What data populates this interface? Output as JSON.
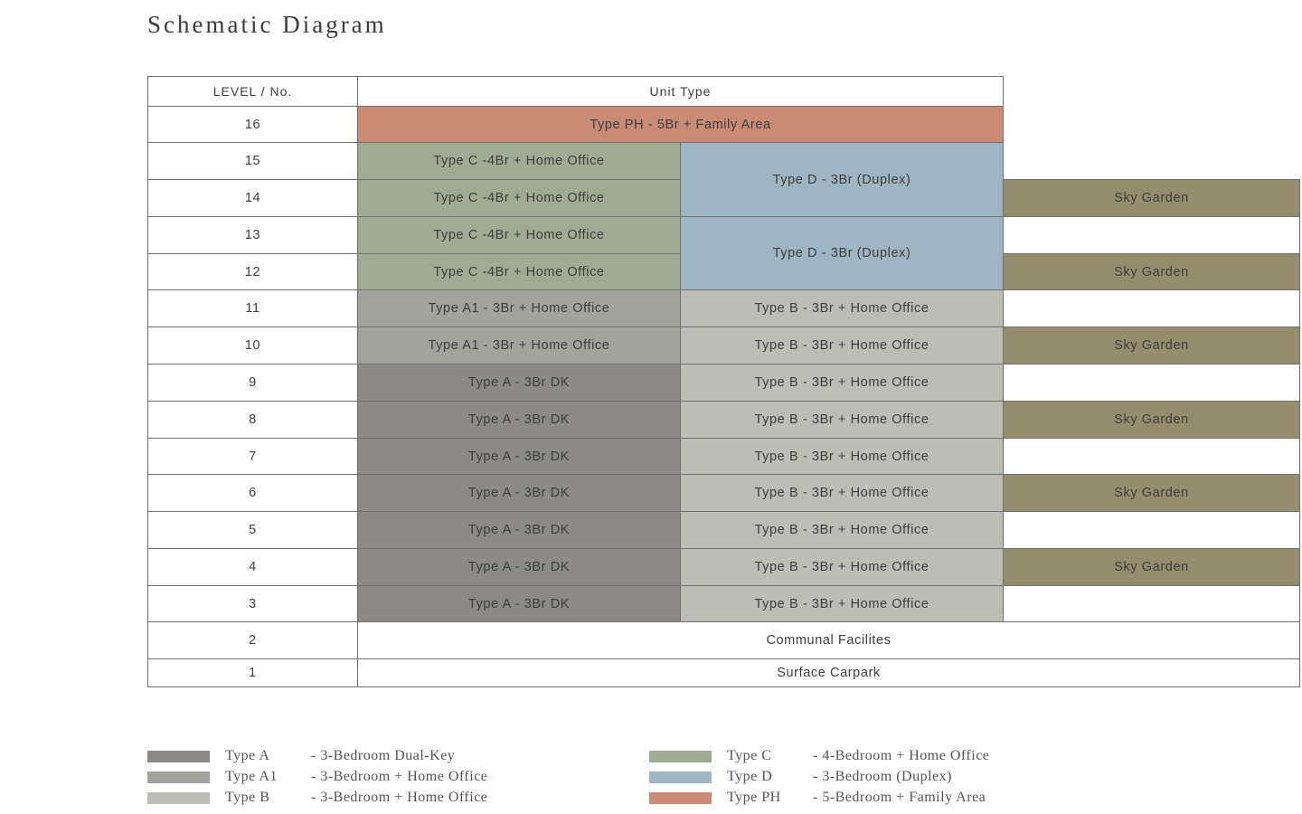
{
  "title": "Schematic Diagram",
  "header": {
    "level": "LEVEL / No.",
    "unit_type": "Unit Type"
  },
  "levels": [
    "16",
    "15",
    "14",
    "13",
    "12",
    "11",
    "10",
    "9",
    "8",
    "7",
    "6",
    "5",
    "4",
    "3",
    "2",
    "1"
  ],
  "units": {
    "ph": "Type PH - 5Br + Family Area",
    "c15": "Type C -4Br + Home Office",
    "c14": "Type C -4Br + Home Office",
    "c13": "Type C -4Br + Home Office",
    "c12": "Type C -4Br + Home Office",
    "d_upper": "Type D - 3Br (Duplex)",
    "d_lower": "Type D - 3Br (Duplex)",
    "a1_11": "Type A1 - 3Br + Home Office",
    "a1_10": "Type A1 - 3Br + Home Office",
    "a9": "Type A - 3Br DK",
    "a8": "Type A - 3Br DK",
    "a7": "Type A - 3Br DK",
    "a6": "Type A - 3Br DK",
    "a5": "Type A - 3Br DK",
    "a4": "Type A - 3Br DK",
    "a3": "Type A - 3Br DK",
    "b11": "Type B - 3Br + Home Office",
    "b10": "Type B - 3Br + Home Office",
    "b9": "Type B - 3Br + Home Office",
    "b8": "Type B - 3Br + Home Office",
    "b7": "Type B - 3Br + Home Office",
    "b6": "Type B - 3Br + Home Office",
    "b5": "Type B - 3Br + Home Office",
    "b4": "Type B - 3Br + Home Office",
    "b3": "Type B - 3Br + Home Office",
    "communal": "Communal Facilites",
    "carpark": "Surface Carpark"
  },
  "sky_garden": {
    "l14": "Sky Garden",
    "l12": "Sky Garden",
    "l10": "Sky Garden",
    "l8": "Sky Garden",
    "l6": "Sky Garden",
    "l4": "Sky Garden"
  },
  "legend": [
    {
      "code": "Type A",
      "desc": "- 3-Bedroom Dual-Key",
      "color": "#8b8a86"
    },
    {
      "code": "Type A1",
      "desc": "- 3-Bedroom + Home Office",
      "color": "#a3a39d"
    },
    {
      "code": "Type B",
      "desc": "- 3-Bedroom + Home Office",
      "color": "#bdbdb8"
    },
    {
      "code": "Type C",
      "desc": "- 4-Bedroom + Home Office",
      "color": "#a1ab94"
    },
    {
      "code": "Type D",
      "desc": "- 3-Bedroom (Duplex)",
      "color": "#9eb6c4"
    },
    {
      "code": "Type PH",
      "desc": "- 5-Bedroom + Family Area",
      "color": "#c98a76"
    }
  ],
  "colors": {
    "type_a": "#8b8a86",
    "type_a1": "#a3a39d",
    "type_b": "#bdbdb8",
    "type_c": "#a1ab94",
    "type_d": "#9eb6c4",
    "type_ph": "#c98a76",
    "sky_garden": "#948e6e"
  }
}
